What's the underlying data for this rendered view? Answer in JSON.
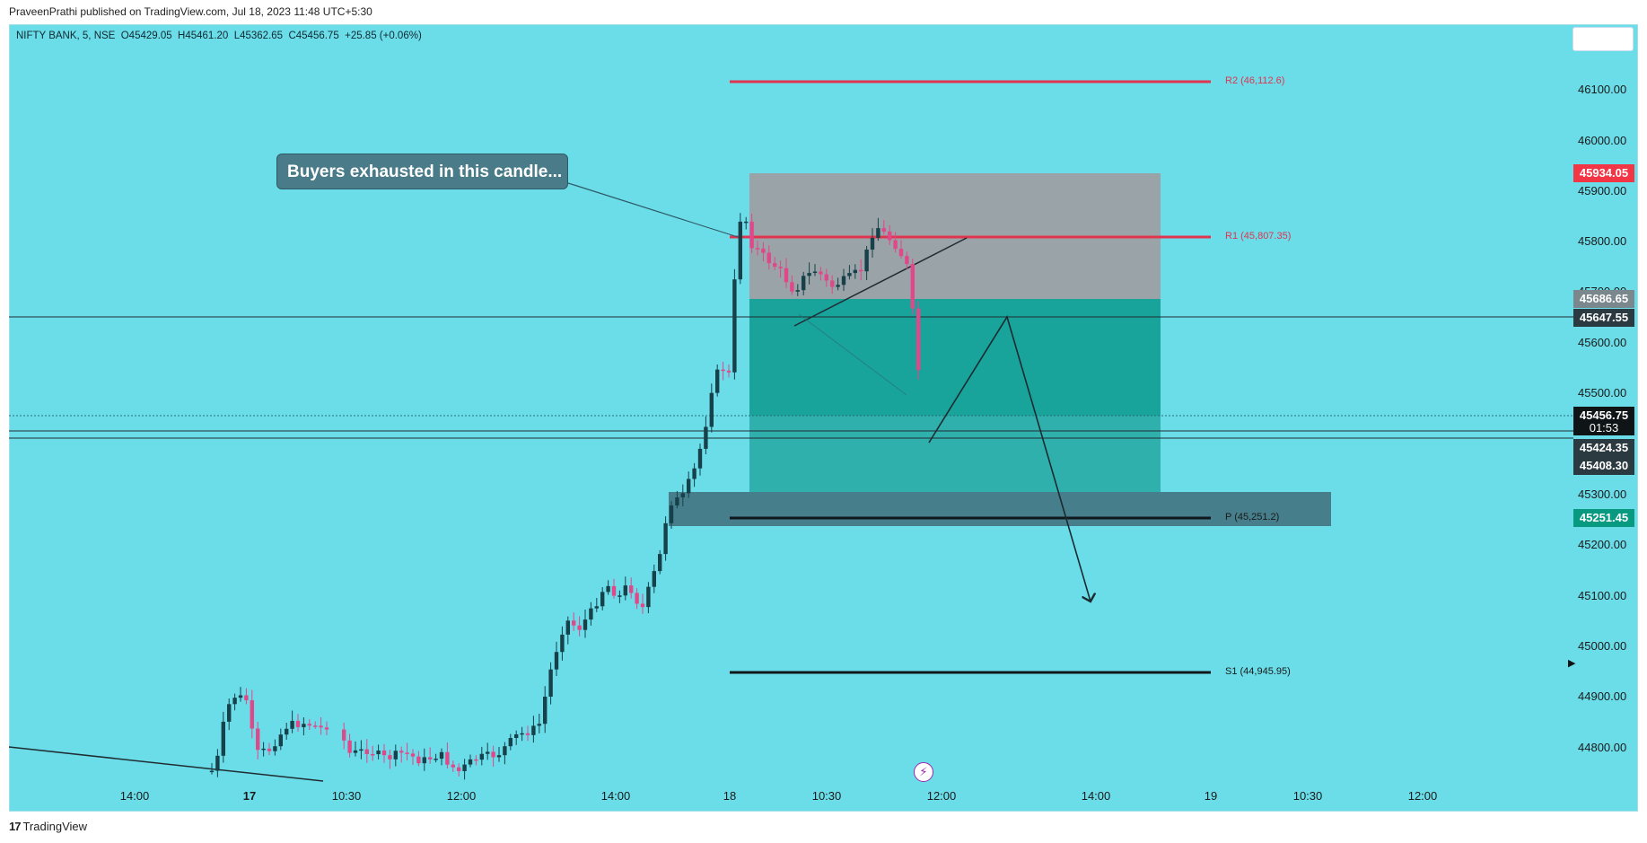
{
  "header": {
    "published_text": "PraveenPrathi published on TradingView.com, Jul 18, 2023 11:48 UTC+5:30"
  },
  "symbol": {
    "info_line": "NIFTY BANK, 5, NSE  O45429.05  H45461.20  L45362.65  C45456.75  +25.85 (+0.06%)"
  },
  "price_axis": {
    "ticks": [
      "46100.00",
      "46000.00",
      "45900.00",
      "45800.00",
      "45700.00",
      "45600.00",
      "45500.00",
      "45300.00",
      "45200.00",
      "45100.00",
      "45000.00",
      "44900.00",
      "44800.00"
    ]
  },
  "price_labels": {
    "target_high": "45934.05",
    "zone_top": "45686.65",
    "line_1": "45647.55",
    "last_price": "45456.75",
    "countdown": "01:53",
    "line_2": "45424.35",
    "line_3": "45408.30",
    "pivot": "45251.45"
  },
  "time_axis": {
    "ticks": [
      "14:00",
      "17",
      "10:30",
      "12:00",
      "14:00",
      "18",
      "10:30",
      "12:00",
      "14:00",
      "19",
      "10:30",
      "12:00"
    ]
  },
  "levels": {
    "r2": "R2 (46,112.6)",
    "r1": "R1 (45,807.35)",
    "p": "P (45,251.2)",
    "s1": "S1 (44,945.95)"
  },
  "annotation": {
    "callout_text": "Buyers exhausted in this candle..."
  },
  "footer": {
    "brand": "TradingView"
  },
  "colors": {
    "chart_bg": "#6bdde9",
    "pivot_red": "#e0344f",
    "bull": "#17414a",
    "bear": "#e0488a",
    "label_red": "#f23645",
    "label_green": "#089981"
  }
}
